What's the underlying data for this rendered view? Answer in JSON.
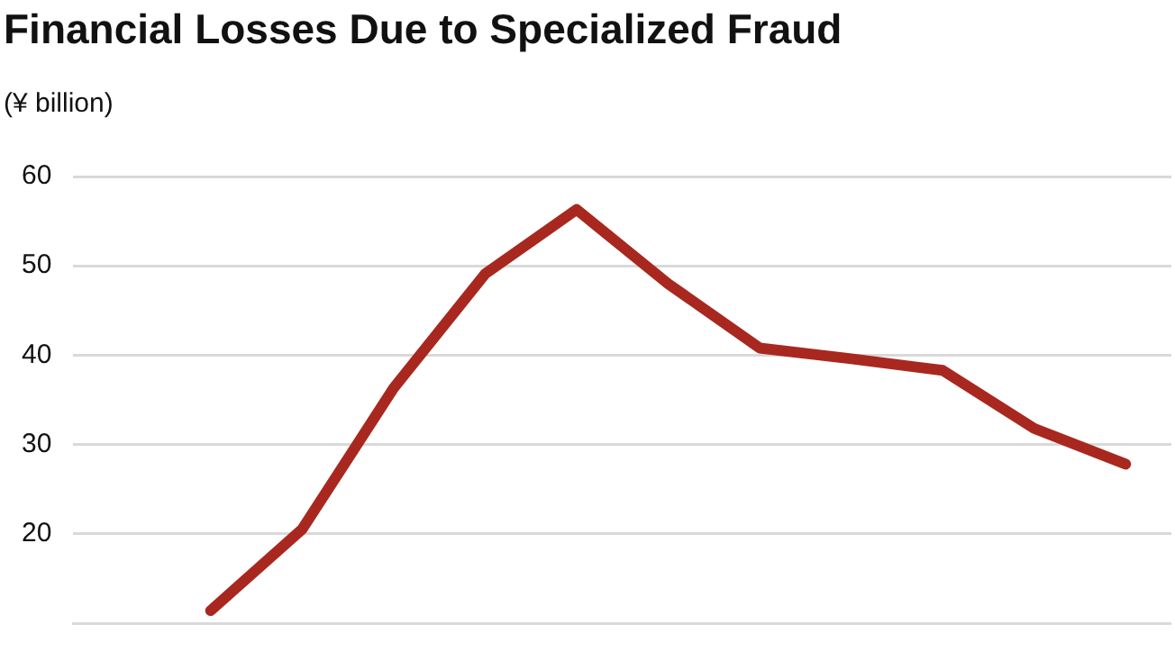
{
  "chart_data": {
    "type": "line",
    "title": "Financial Losses Due to Specialized Fraud",
    "ylabel": "(¥ billion)",
    "categories": [
      null,
      null,
      null,
      null,
      null,
      null,
      null,
      null,
      null,
      null,
      null,
      null
    ],
    "series": [
      {
        "color": "#a8281f",
        "values": [
          null,
          11.4,
          20.5,
          36.3,
          49.1,
          56.3,
          48.0,
          40.8,
          39.6,
          38.3,
          31.8,
          27.8
        ]
      }
    ],
    "ylim": [
      10,
      60
    ],
    "yticks": [
      20,
      30,
      40,
      50,
      60
    ],
    "grid": "y",
    "tick_labels": "y",
    "marker": "none",
    "line_style": "solid"
  }
}
